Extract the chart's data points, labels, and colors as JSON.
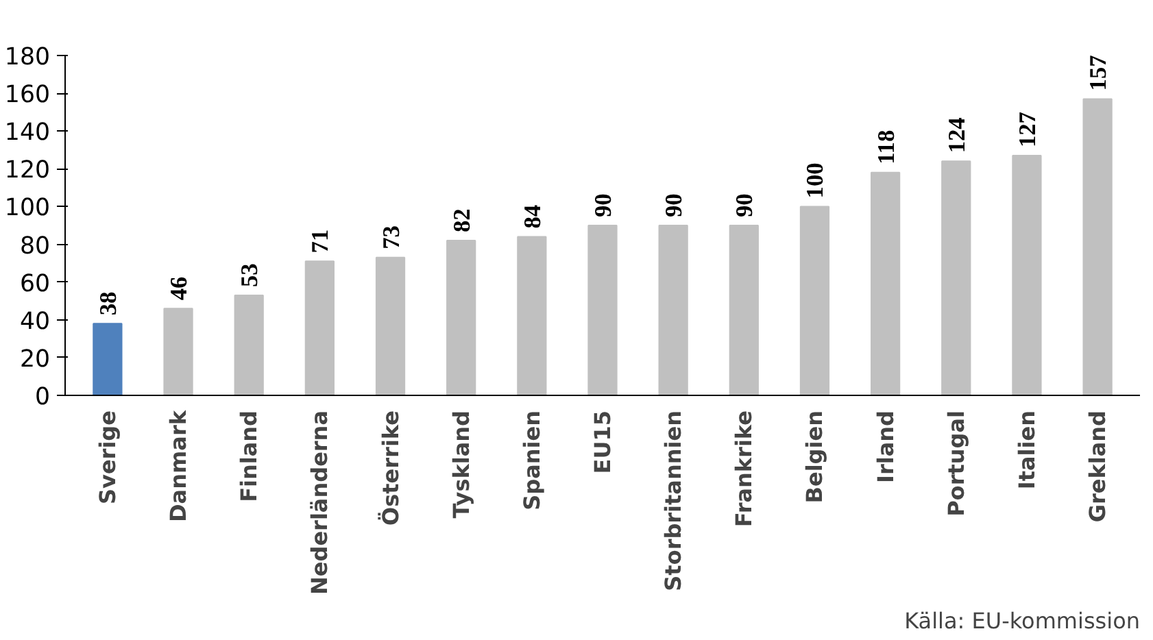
{
  "chart_data": {
    "type": "bar",
    "categories": [
      "Sverige",
      "Danmark",
      "Finland",
      "Nederländerna",
      "Österrike",
      "Tyskland",
      "Spanien",
      "EU15",
      "Storbritannien",
      "Frankrike",
      "Belgien",
      "Irland",
      "Portugal",
      "Italien",
      "Grekland"
    ],
    "values": [
      38,
      46,
      53,
      71,
      73,
      82,
      84,
      90,
      90,
      90,
      100,
      118,
      124,
      127,
      157
    ],
    "colors": [
      "#4f81bd",
      "#c0c0c0",
      "#c0c0c0",
      "#c0c0c0",
      "#c0c0c0",
      "#c0c0c0",
      "#c0c0c0",
      "#c0c0c0",
      "#c0c0c0",
      "#c0c0c0",
      "#c0c0c0",
      "#c0c0c0",
      "#c0c0c0",
      "#c0c0c0",
      "#c0c0c0"
    ],
    "ylim": [
      0,
      180
    ],
    "yticks": [
      0,
      20,
      40,
      60,
      80,
      100,
      120,
      140,
      160,
      180
    ],
    "grid": false,
    "data_labels": true,
    "annotations": [
      "Källa: EU-kommission"
    ]
  }
}
